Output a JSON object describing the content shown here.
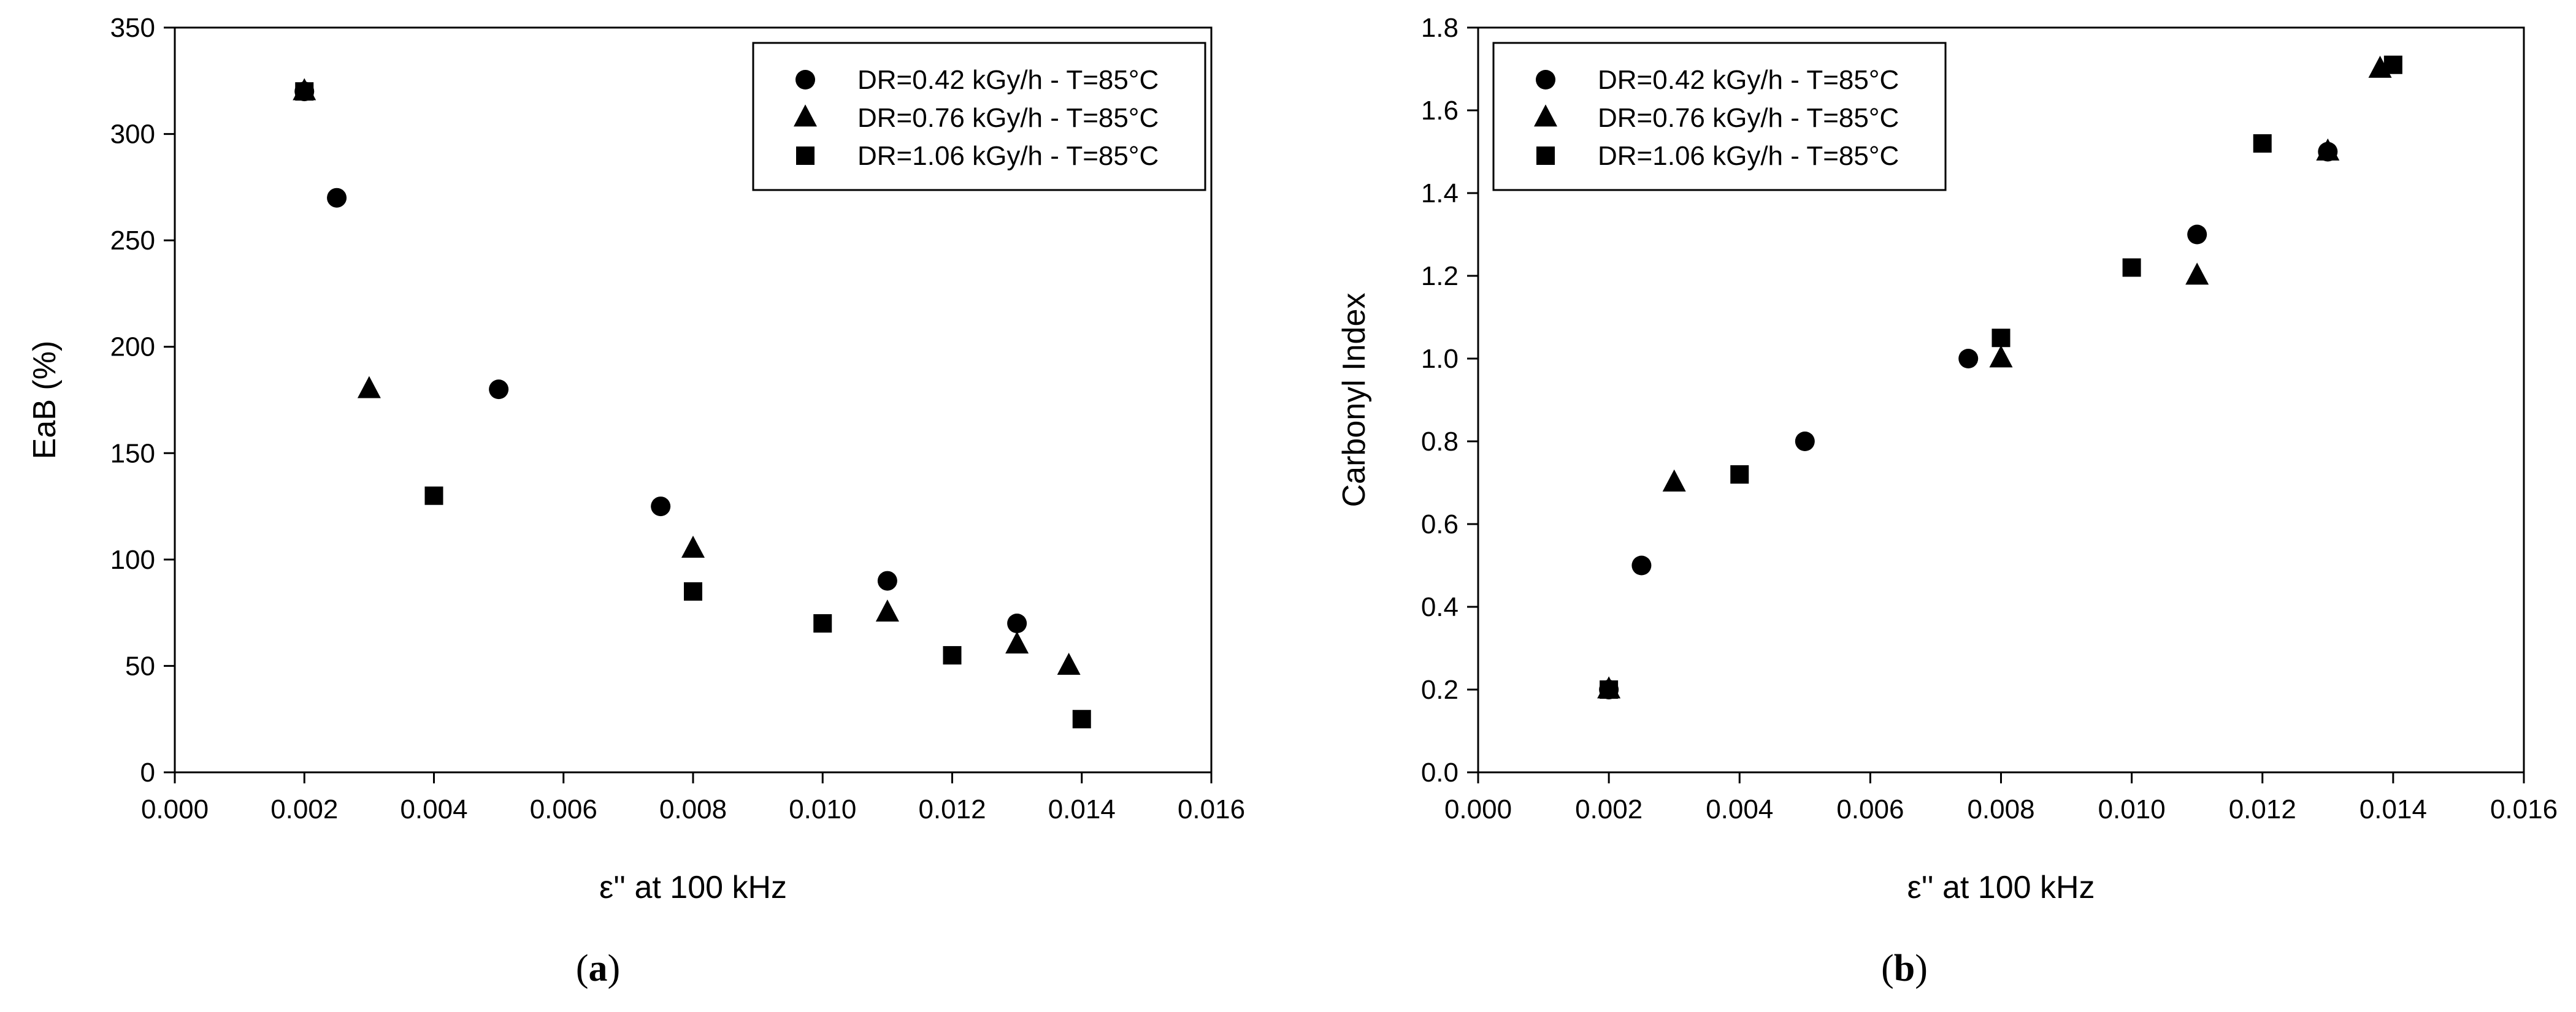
{
  "chart_data": [
    {
      "type": "scatter",
      "title": "",
      "xlabel": "ε'' at 100 kHz",
      "ylabel": "EaB (%)",
      "xlim": [
        0,
        0.016
      ],
      "ylim": [
        0,
        350
      ],
      "xticks": [
        "0.000",
        "0.002",
        "0.004",
        "0.006",
        "0.008",
        "0.010",
        "0.012",
        "0.014",
        "0.016"
      ],
      "yticks": [
        "0",
        "50",
        "100",
        "150",
        "200",
        "250",
        "300",
        "350"
      ],
      "grid": false,
      "legend_position": "top-right",
      "panel_label": {
        "open": "(",
        "letter": "a",
        "close": ")"
      },
      "series": [
        {
          "name": "DR=0.42 kGy/h - T=85°C",
          "marker": "circle",
          "x": [
            0.002,
            0.0025,
            0.005,
            0.0075,
            0.011,
            0.013
          ],
          "y": [
            320,
            270,
            180,
            125,
            90,
            70
          ]
        },
        {
          "name": "DR=0.76 kGy/h - T=85°C",
          "marker": "triangle",
          "x": [
            0.002,
            0.003,
            0.008,
            0.011,
            0.013,
            0.0138
          ],
          "y": [
            320,
            180,
            105,
            75,
            60,
            50
          ]
        },
        {
          "name": "DR=1.06 kGy/h - T=85°C",
          "marker": "square",
          "x": [
            0.002,
            0.004,
            0.008,
            0.01,
            0.012,
            0.014
          ],
          "y": [
            320,
            130,
            85,
            70,
            55,
            25
          ]
        }
      ]
    },
    {
      "type": "scatter",
      "title": "",
      "xlabel": "ε'' at 100 kHz",
      "ylabel": "Carbonyl Index",
      "xlim": [
        0,
        0.016
      ],
      "ylim": [
        0,
        1.8
      ],
      "xticks": [
        "0.000",
        "0.002",
        "0.004",
        "0.006",
        "0.008",
        "0.010",
        "0.012",
        "0.014",
        "0.016"
      ],
      "yticks": [
        "0.0",
        "0.2",
        "0.4",
        "0.6",
        "0.8",
        "1.0",
        "1.2",
        "1.4",
        "1.6",
        "1.8"
      ],
      "grid": false,
      "legend_position": "top-left",
      "panel_label": {
        "open": "(",
        "letter": "b",
        "close": ")"
      },
      "series": [
        {
          "name": "DR=0.42 kGy/h - T=85°C",
          "marker": "circle",
          "x": [
            0.002,
            0.0025,
            0.005,
            0.0075,
            0.011,
            0.013
          ],
          "y": [
            0.2,
            0.5,
            0.8,
            1.0,
            1.3,
            1.5
          ]
        },
        {
          "name": "DR=0.76 kGy/h - T=85°C",
          "marker": "triangle",
          "x": [
            0.002,
            0.003,
            0.008,
            0.011,
            0.013,
            0.0138
          ],
          "y": [
            0.2,
            0.7,
            1.0,
            1.2,
            1.5,
            1.7
          ]
        },
        {
          "name": "DR=1.06 kGy/h - T=85°C",
          "marker": "square",
          "x": [
            0.002,
            0.004,
            0.008,
            0.01,
            0.012,
            0.014
          ],
          "y": [
            0.2,
            0.72,
            1.05,
            1.22,
            1.52,
            1.71
          ]
        }
      ]
    }
  ],
  "colors": {
    "ink": "#000000",
    "background": "#ffffff"
  }
}
